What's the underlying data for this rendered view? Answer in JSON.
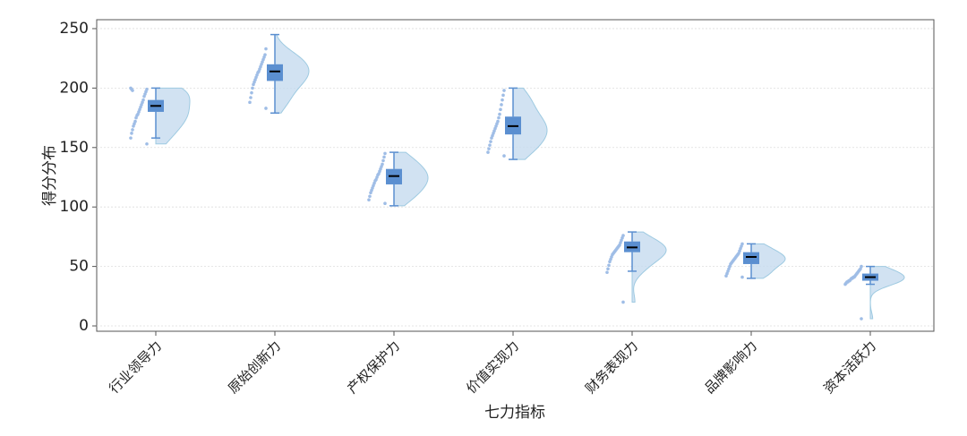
{
  "chart_data": {
    "type": "raincloud",
    "x_label": "七力指标",
    "y_label": "得分分布",
    "categories": [
      "行业领导力",
      "原始创新力",
      "产权保护力",
      "价值实现力",
      "财务表现力",
      "品牌影响力",
      "资本活跃力"
    ],
    "ylim": [
      -4.5,
      257.5
    ],
    "yticks": [
      0,
      50,
      100,
      150,
      200,
      250
    ],
    "grid": true,
    "box_color": "#5b8fd0",
    "violin_color": "#c6dbef",
    "point_color": "#9fbde6",
    "boxes": [
      {
        "whisker_low": 158,
        "q1": 180,
        "median": 185,
        "q3": 190,
        "whisker_high": 200,
        "points": [
          153,
          158,
          162,
          165,
          168,
          170,
          172,
          175,
          177,
          178,
          180,
          182,
          184,
          186,
          188,
          190,
          193,
          195,
          197,
          199,
          200,
          199,
          198
        ]
      },
      {
        "whisker_low": 179,
        "q1": 206,
        "median": 214,
        "q3": 220,
        "whisker_high": 245,
        "points": [
          183,
          188,
          192,
          196,
          200,
          203,
          205,
          207,
          209,
          211,
          213,
          214,
          216,
          218,
          220,
          222,
          224,
          226,
          228,
          233
        ]
      },
      {
        "whisker_low": 101,
        "q1": 119,
        "median": 126,
        "q3": 132,
        "whisker_high": 146,
        "points": [
          103,
          106,
          109,
          112,
          114,
          116,
          118,
          120,
          122,
          123,
          125,
          127,
          128,
          130,
          132,
          134,
          136,
          139,
          142,
          145
        ]
      },
      {
        "whisker_low": 140,
        "q1": 161,
        "median": 168,
        "q3": 176,
        "whisker_high": 200,
        "points": [
          143,
          146,
          149,
          152,
          155,
          158,
          160,
          162,
          164,
          166,
          168,
          170,
          172,
          175,
          178,
          182,
          186,
          190,
          194,
          198
        ]
      },
      {
        "whisker_low": 46,
        "q1": 62,
        "median": 66,
        "q3": 71,
        "whisker_high": 79,
        "points": [
          20,
          45,
          48,
          51,
          54,
          56,
          58,
          60,
          61,
          62,
          63,
          64,
          65,
          66,
          67,
          68,
          70,
          72,
          74,
          76
        ]
      },
      {
        "whisker_low": 40,
        "q1": 52,
        "median": 58,
        "q3": 62,
        "whisker_high": 69,
        "points": [
          41,
          42,
          44,
          46,
          48,
          50,
          52,
          53,
          54,
          55,
          56,
          57,
          58,
          59,
          60,
          61,
          63,
          65,
          67,
          69
        ]
      },
      {
        "whisker_low": 35,
        "q1": 38,
        "median": 41,
        "q3": 44,
        "whisker_high": 50,
        "points": [
          6,
          35,
          36,
          37,
          37,
          38,
          38,
          39,
          40,
          40,
          41,
          41,
          42,
          43,
          44,
          45,
          46,
          47,
          48,
          50
        ]
      }
    ]
  }
}
